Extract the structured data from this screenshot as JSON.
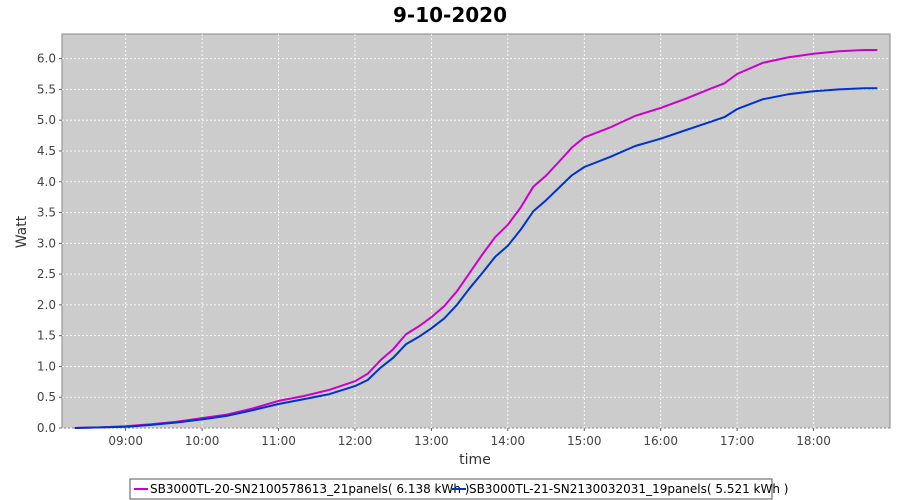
{
  "chart_data": {
    "type": "line",
    "title": "9-10-2020",
    "xlabel": "time",
    "ylabel": "Watt",
    "x_unit": "hour of day",
    "xlim": [
      "08:10",
      "19:00"
    ],
    "ylim": [
      0,
      6.4
    ],
    "xticks": [
      "09:00",
      "10:00",
      "11:00",
      "12:00",
      "13:00",
      "14:00",
      "15:00",
      "16:00",
      "17:00",
      "18:00"
    ],
    "yticks": [
      "0.0",
      "0.5",
      "1.0",
      "1.5",
      "2.0",
      "2.5",
      "3.0",
      "3.5",
      "4.0",
      "4.5",
      "5.0",
      "5.5",
      "6.0"
    ],
    "grid": true,
    "legend_position": "bottom",
    "background_color": "#cccccc",
    "series": [
      {
        "name": "SB3000TL-20-SN2100578613_21panels( 6.138 kWh )",
        "color": "#cc00cc",
        "points": [
          [
            "08:20",
            0.0
          ],
          [
            "08:40",
            0.01
          ],
          [
            "09:00",
            0.03
          ],
          [
            "09:20",
            0.06
          ],
          [
            "09:40",
            0.1
          ],
          [
            "10:00",
            0.16
          ],
          [
            "10:20",
            0.22
          ],
          [
            "10:40",
            0.32
          ],
          [
            "11:00",
            0.44
          ],
          [
            "11:20",
            0.52
          ],
          [
            "11:40",
            0.62
          ],
          [
            "12:00",
            0.76
          ],
          [
            "12:10",
            0.88
          ],
          [
            "12:20",
            1.1
          ],
          [
            "12:30",
            1.28
          ],
          [
            "12:40",
            1.52
          ],
          [
            "12:50",
            1.65
          ],
          [
            "13:00",
            1.8
          ],
          [
            "13:10",
            1.98
          ],
          [
            "13:20",
            2.22
          ],
          [
            "13:30",
            2.52
          ],
          [
            "13:40",
            2.82
          ],
          [
            "13:50",
            3.1
          ],
          [
            "14:00",
            3.3
          ],
          [
            "14:10",
            3.58
          ],
          [
            "14:20",
            3.92
          ],
          [
            "14:30",
            4.1
          ],
          [
            "14:40",
            4.32
          ],
          [
            "14:50",
            4.55
          ],
          [
            "15:00",
            4.72
          ],
          [
            "15:20",
            4.88
          ],
          [
            "15:40",
            5.07
          ],
          [
            "16:00",
            5.2
          ],
          [
            "16:20",
            5.35
          ],
          [
            "16:40",
            5.52
          ],
          [
            "16:50",
            5.6
          ],
          [
            "17:00",
            5.75
          ],
          [
            "17:20",
            5.93
          ],
          [
            "17:40",
            6.02
          ],
          [
            "18:00",
            6.08
          ],
          [
            "18:20",
            6.12
          ],
          [
            "18:40",
            6.14
          ],
          [
            "18:50",
            6.14
          ]
        ]
      },
      {
        "name": "SB3000TL-21-SN2130032031_19panels( 5.521 kWh )",
        "color": "#0033cc",
        "points": [
          [
            "08:20",
            0.0
          ],
          [
            "08:40",
            0.01
          ],
          [
            "09:00",
            0.02
          ],
          [
            "09:20",
            0.05
          ],
          [
            "09:40",
            0.09
          ],
          [
            "10:00",
            0.14
          ],
          [
            "10:20",
            0.2
          ],
          [
            "10:40",
            0.29
          ],
          [
            "11:00",
            0.39
          ],
          [
            "11:20",
            0.47
          ],
          [
            "11:40",
            0.55
          ],
          [
            "12:00",
            0.68
          ],
          [
            "12:10",
            0.78
          ],
          [
            "12:20",
            0.98
          ],
          [
            "12:30",
            1.14
          ],
          [
            "12:40",
            1.36
          ],
          [
            "12:50",
            1.48
          ],
          [
            "13:00",
            1.62
          ],
          [
            "13:10",
            1.78
          ],
          [
            "13:20",
            2.0
          ],
          [
            "13:30",
            2.27
          ],
          [
            "13:40",
            2.52
          ],
          [
            "13:50",
            2.78
          ],
          [
            "14:00",
            2.96
          ],
          [
            "14:10",
            3.22
          ],
          [
            "14:20",
            3.52
          ],
          [
            "14:30",
            3.7
          ],
          [
            "14:40",
            3.9
          ],
          [
            "14:50",
            4.1
          ],
          [
            "15:00",
            4.24
          ],
          [
            "15:20",
            4.4
          ],
          [
            "15:40",
            4.58
          ],
          [
            "16:00",
            4.7
          ],
          [
            "16:20",
            4.84
          ],
          [
            "16:40",
            4.98
          ],
          [
            "16:50",
            5.05
          ],
          [
            "17:00",
            5.18
          ],
          [
            "17:20",
            5.34
          ],
          [
            "17:40",
            5.42
          ],
          [
            "18:00",
            5.47
          ],
          [
            "18:20",
            5.5
          ],
          [
            "18:40",
            5.52
          ],
          [
            "18:50",
            5.52
          ]
        ]
      }
    ]
  }
}
